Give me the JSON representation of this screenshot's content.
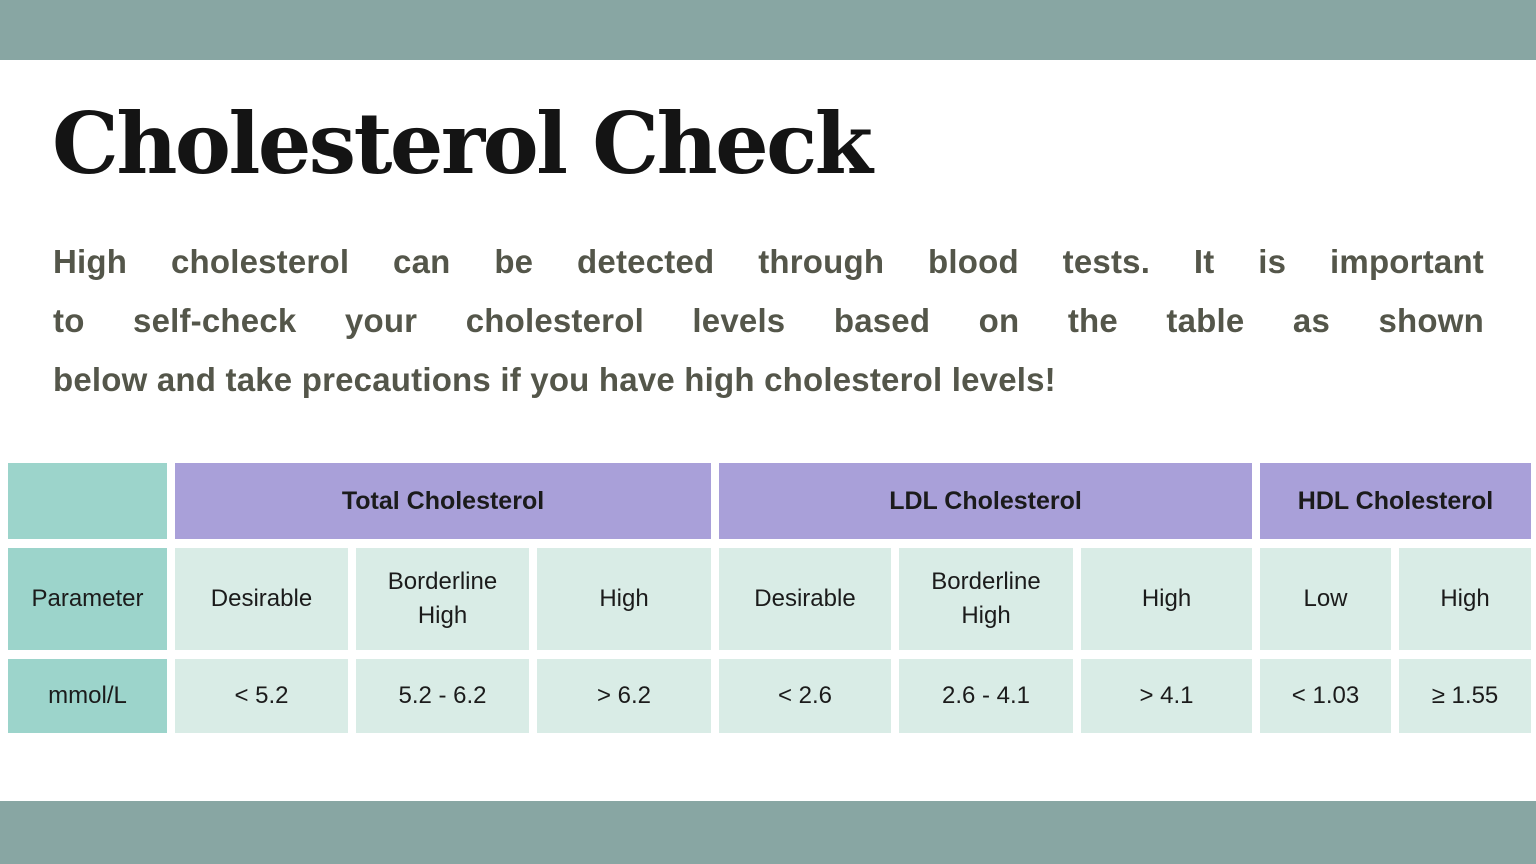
{
  "slide": {
    "title": "Cholesterol Check",
    "paragraph_lines": [
      "High cholesterol can be detected through blood tests. It is important",
      "to self-check your cholesterol levels based on the table as shown",
      "below and take precautions if you have high cholesterol levels!"
    ]
  },
  "table": {
    "corner_label": "",
    "groups": [
      {
        "label": "Total Cholesterol",
        "span": 3
      },
      {
        "label": "LDL Cholesterol",
        "span": 3
      },
      {
        "label": "HDL Cholesterol",
        "span": 2
      }
    ],
    "param_header": "Parameter",
    "col_headers": [
      "Desirable",
      "Borderline High",
      "High",
      "Desirable",
      "Borderline High",
      "High",
      "Low",
      "High"
    ],
    "unit_label": "mmol/L",
    "values": [
      "< 5.2",
      "5.2 - 6.2",
      "> 6.2",
      "< 2.6",
      "2.6 - 4.1",
      "> 4.1",
      "< 1.03",
      "≥ 1.55"
    ]
  },
  "colors": {
    "border_bar": "#88a6a3",
    "group_header": "#a9a0d9",
    "row_header": "#9cd4cb",
    "cell_bg": "#d9ece6",
    "title_text": "#141414",
    "paragraph_text": "#54564a",
    "table_text": "#1b1b1b"
  }
}
